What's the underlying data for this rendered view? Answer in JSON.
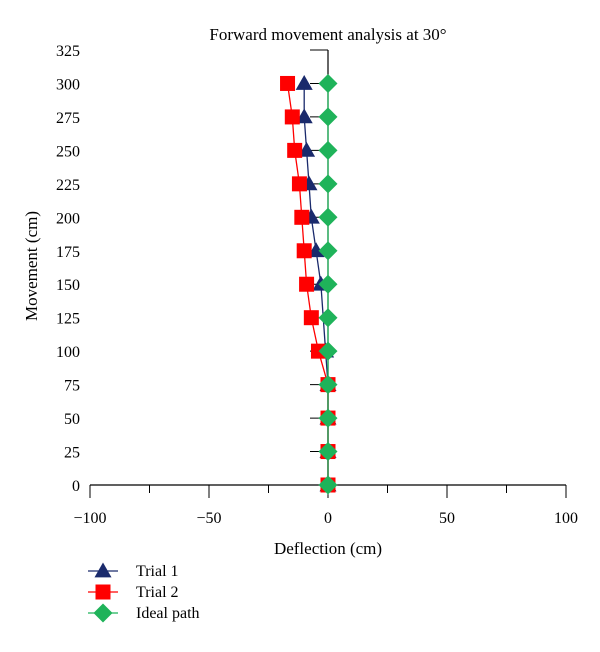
{
  "chart_data": {
    "type": "line",
    "title": "Forward movement analysis at 30°",
    "xlabel": "Deflection (cm)",
    "ylabel": "Movement (cm)",
    "xlim": [
      -100,
      100
    ],
    "ylim": [
      0,
      325
    ],
    "xticks": [
      -100,
      -50,
      0,
      50,
      100
    ],
    "xtick_labels": [
      "−100",
      "−50",
      "0",
      "50",
      "100"
    ],
    "yticks": [
      0,
      25,
      50,
      75,
      100,
      125,
      150,
      175,
      200,
      225,
      250,
      275,
      300,
      325
    ],
    "ytick_labels": [
      "0",
      "25",
      "50",
      "75",
      "100",
      "125",
      "150",
      "175",
      "200",
      "225",
      "250",
      "275",
      "300",
      "325"
    ],
    "grid": false,
    "legend_position": "bottom-left",
    "series": [
      {
        "name": "Trial 1",
        "marker": "triangle",
        "color": "#1a2a6c",
        "points": [
          [
            0,
            0
          ],
          [
            0,
            25
          ],
          [
            0,
            50
          ],
          [
            0,
            75
          ],
          [
            -1,
            100
          ],
          [
            -3,
            150
          ],
          [
            -5,
            175
          ],
          [
            -7,
            200
          ],
          [
            -8,
            225
          ],
          [
            -9,
            250
          ],
          [
            -10,
            275
          ],
          [
            -10,
            300
          ]
        ]
      },
      {
        "name": "Trial 2",
        "marker": "square",
        "color": "#ff0000",
        "points": [
          [
            0,
            0
          ],
          [
            0,
            25
          ],
          [
            0,
            50
          ],
          [
            0,
            75
          ],
          [
            -4,
            100
          ],
          [
            -7,
            125
          ],
          [
            -9,
            150
          ],
          [
            -10,
            175
          ],
          [
            -11,
            200
          ],
          [
            -12,
            225
          ],
          [
            -14,
            250
          ],
          [
            -15,
            275
          ],
          [
            -17,
            300
          ]
        ]
      },
      {
        "name": "Ideal path",
        "marker": "diamond",
        "color": "#1fb35a",
        "points": [
          [
            0,
            0
          ],
          [
            0,
            25
          ],
          [
            0,
            50
          ],
          [
            0,
            75
          ],
          [
            0,
            100
          ],
          [
            0,
            125
          ],
          [
            0,
            150
          ],
          [
            0,
            175
          ],
          [
            0,
            200
          ],
          [
            0,
            225
          ],
          [
            0,
            250
          ],
          [
            0,
            275
          ],
          [
            0,
            300
          ]
        ]
      }
    ]
  }
}
